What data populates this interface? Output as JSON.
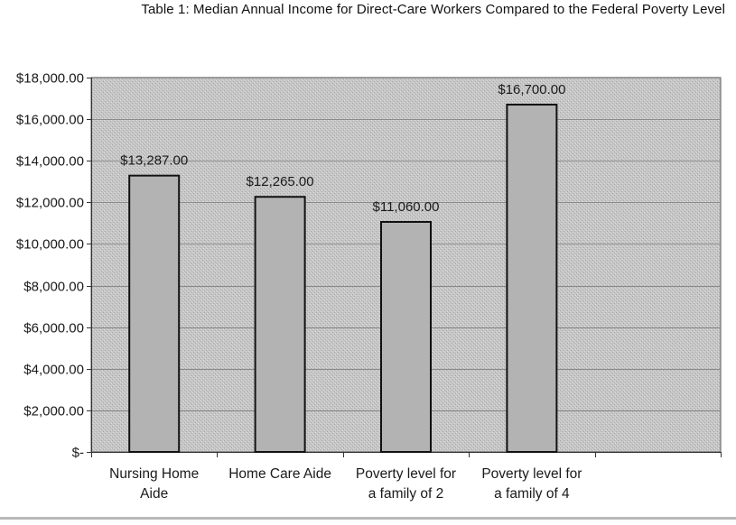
{
  "chart_data": {
    "type": "bar",
    "title": "Table 1: Median Annual Income for Direct-Care Workers Compared to the Federal Poverty Level",
    "categories": [
      [
        "Nursing Home",
        "Aide"
      ],
      [
        "Home Care Aide"
      ],
      [
        "Poverty level for",
        "a family of 2"
      ],
      [
        "Poverty level for",
        "a family of 4"
      ]
    ],
    "values": [
      13287,
      12265,
      11060,
      16700
    ],
    "data_labels": [
      "$13,287.00",
      "$12,265.00",
      "$11,060.00",
      "$16,700.00"
    ],
    "ylim": [
      0,
      18000
    ],
    "yticks": [
      0,
      2000,
      4000,
      6000,
      8000,
      10000,
      12000,
      14000,
      16000,
      18000
    ],
    "ytick_labels": [
      "$-",
      "$2,000.00",
      "$4,000.00",
      "$6,000.00",
      "$8,000.00",
      "$10,000.00",
      "$12,000.00",
      "$14,000.00",
      "$16,000.00",
      "$18,000.00"
    ],
    "grid": true,
    "legend": "none",
    "colors": {
      "plot_bg": "#c9c9c9",
      "bar_fill": "#b3b3b3",
      "bar_stroke": "#111111",
      "grid": "#8a8a8a"
    }
  }
}
